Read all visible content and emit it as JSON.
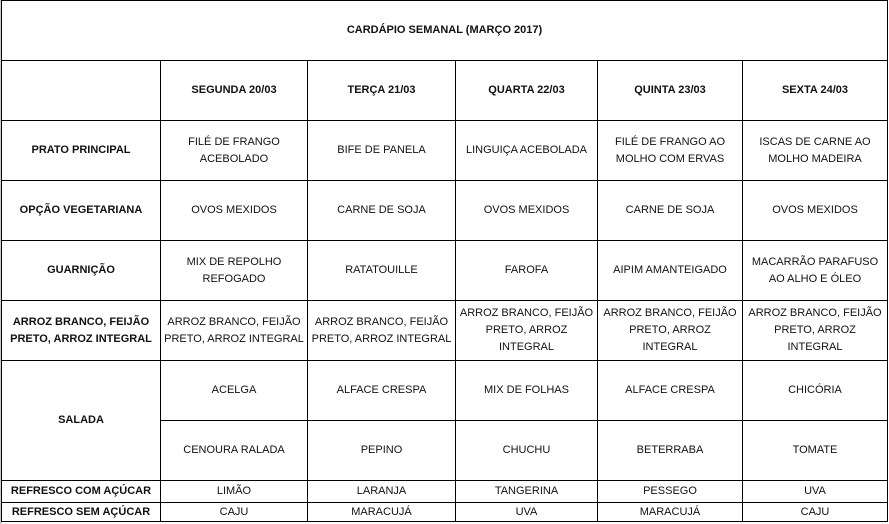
{
  "title": "CARDÁPIO SEMANAL (MARÇO 2017)",
  "days": [
    "SEGUNDA 20/03",
    "TERÇA 21/03",
    "QUARTA 22/03",
    "QUINTA 23/03",
    "SEXTA 24/03"
  ],
  "rows": [
    {
      "label": "PRATO PRINCIPAL",
      "values": [
        "FILÉ DE FRANGO ACEBOLADO",
        "BIFE DE PANELA",
        "LINGUIÇA  ACEBOLADA",
        "FILÉ DE FRANGO AO MOLHO COM ERVAS",
        "ISCAS DE CARNE AO MOLHO MADEIRA"
      ]
    },
    {
      "label": "OPÇÃO VEGETARIANA",
      "values": [
        "OVOS MEXIDOS",
        "CARNE DE SOJA",
        "OVOS MEXIDOS",
        "CARNE DE SOJA",
        "OVOS MEXIDOS"
      ]
    },
    {
      "label": "GUARNIÇÃO",
      "values": [
        "MIX DE REPOLHO REFOGADO",
        "RATATOUILLE",
        "FAROFA",
        "AIPIM AMANTEIGADO",
        "MACARRÃO PARAFUSO AO ALHO E ÓLEO"
      ]
    },
    {
      "label": "ARROZ BRANCO, FEIJÃO PRETO, ARROZ INTEGRAL",
      "values": [
        "ARROZ BRANCO, FEIJÃO PRETO, ARROZ INTEGRAL",
        "ARROZ BRANCO, FEIJÃO PRETO, ARROZ INTEGRAL",
        "ARROZ BRANCO, FEIJÃO PRETO, ARROZ INTEGRAL",
        "ARROZ BRANCO, FEIJÃO PRETO, ARROZ INTEGRAL",
        "ARROZ BRANCO, FEIJÃO PRETO, ARROZ INTEGRAL"
      ]
    }
  ],
  "salada": {
    "label": "SALADA",
    "row1": [
      "ACELGA",
      "ALFACE CRESPA",
      "MIX DE FOLHAS",
      "ALFACE CRESPA",
      "CHICÓRIA"
    ],
    "row2": [
      "CENOURA RALADA",
      "PEPINO",
      "CHUCHU",
      "BETERRABA",
      "TOMATE"
    ]
  },
  "refrescos": [
    {
      "label": "REFRESCO COM AÇÚCAR",
      "values": [
        "LIMÃO",
        "LARANJA",
        "TANGERINA",
        "PESSEGO",
        "UVA"
      ]
    },
    {
      "label": "REFRESCO SEM AÇÚCAR",
      "values": [
        "CAJU",
        "MARACUJÁ",
        "UVA",
        "MARACUJÁ",
        "CAJU"
      ]
    }
  ]
}
